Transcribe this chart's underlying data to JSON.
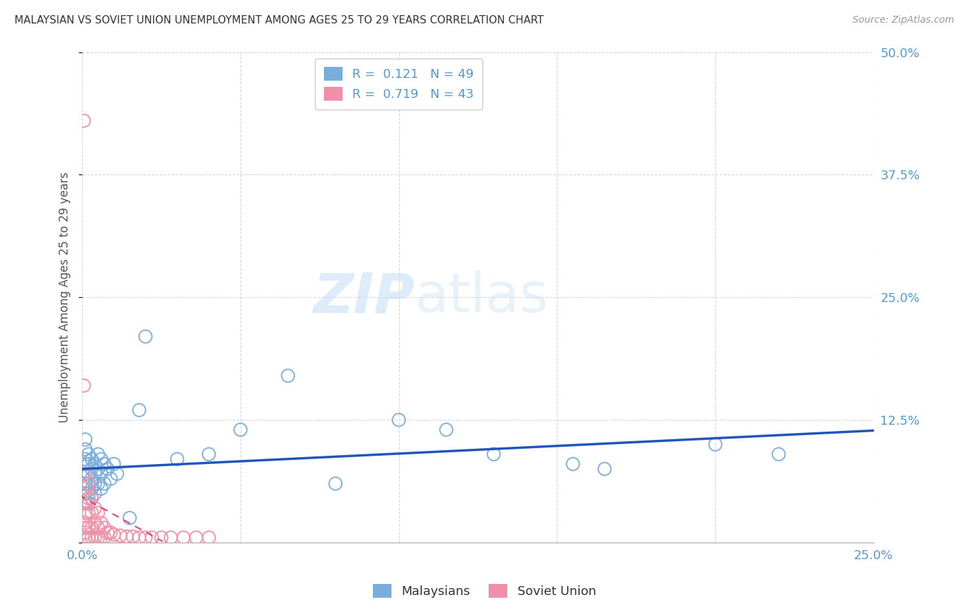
{
  "title": "MALAYSIAN VS SOVIET UNION UNEMPLOYMENT AMONG AGES 25 TO 29 YEARS CORRELATION CHART",
  "source": "Source: ZipAtlas.com",
  "ylabel": "Unemployment Among Ages 25 to 29 years",
  "xlim": [
    0,
    0.25
  ],
  "ylim": [
    0,
    0.5
  ],
  "xticks": [
    0.0,
    0.05,
    0.1,
    0.15,
    0.2,
    0.25
  ],
  "yticks": [
    0.0,
    0.125,
    0.25,
    0.375,
    0.5
  ],
  "blue_color": "#7aacdc",
  "pink_color": "#f090a8",
  "blue_line_color": "#2255bb",
  "pink_line_color": "#e8407a",
  "axis_label_color": "#5599cc",
  "grid_color": "#cccccc",
  "malaysians_x": [
    0.001,
    0.001,
    0.001,
    0.001,
    0.001,
    0.001,
    0.001,
    0.001,
    0.002,
    0.002,
    0.002,
    0.002,
    0.002,
    0.002,
    0.003,
    0.003,
    0.003,
    0.003,
    0.003,
    0.004,
    0.004,
    0.004,
    0.004,
    0.005,
    0.005,
    0.005,
    0.006,
    0.006,
    0.006,
    0.007,
    0.007,
    0.008,
    0.009,
    0.01,
    0.011,
    0.015,
    0.018,
    0.02,
    0.03,
    0.04,
    0.05,
    0.065,
    0.08,
    0.1,
    0.115,
    0.13,
    0.155,
    0.165,
    0.2,
    0.22
  ],
  "malaysians_y": [
    0.085,
    0.095,
    0.105,
    0.08,
    0.07,
    0.06,
    0.05,
    0.04,
    0.09,
    0.08,
    0.07,
    0.06,
    0.05,
    0.04,
    0.085,
    0.075,
    0.065,
    0.055,
    0.045,
    0.08,
    0.07,
    0.06,
    0.05,
    0.09,
    0.075,
    0.06,
    0.085,
    0.07,
    0.055,
    0.08,
    0.06,
    0.075,
    0.065,
    0.08,
    0.07,
    0.025,
    0.135,
    0.21,
    0.085,
    0.09,
    0.115,
    0.17,
    0.06,
    0.125,
    0.115,
    0.09,
    0.08,
    0.075,
    0.1,
    0.09
  ],
  "soviet_x": [
    0.0005,
    0.0005,
    0.001,
    0.001,
    0.001,
    0.001,
    0.001,
    0.001,
    0.001,
    0.001,
    0.002,
    0.002,
    0.002,
    0.002,
    0.002,
    0.003,
    0.003,
    0.003,
    0.003,
    0.004,
    0.004,
    0.004,
    0.005,
    0.005,
    0.005,
    0.006,
    0.006,
    0.007,
    0.007,
    0.008,
    0.009,
    0.01,
    0.012,
    0.014,
    0.016,
    0.018,
    0.02,
    0.022,
    0.025,
    0.028,
    0.032,
    0.036,
    0.04
  ],
  "soviet_y": [
    0.43,
    0.16,
    0.07,
    0.055,
    0.04,
    0.03,
    0.02,
    0.015,
    0.01,
    0.005,
    0.06,
    0.045,
    0.03,
    0.015,
    0.005,
    0.045,
    0.03,
    0.015,
    0.005,
    0.035,
    0.02,
    0.005,
    0.03,
    0.015,
    0.005,
    0.02,
    0.005,
    0.015,
    0.005,
    0.01,
    0.01,
    0.008,
    0.007,
    0.006,
    0.006,
    0.005,
    0.005,
    0.005,
    0.005,
    0.005,
    0.005,
    0.005,
    0.005
  ],
  "watermark_zip": "ZIP",
  "watermark_atlas": "atlas"
}
